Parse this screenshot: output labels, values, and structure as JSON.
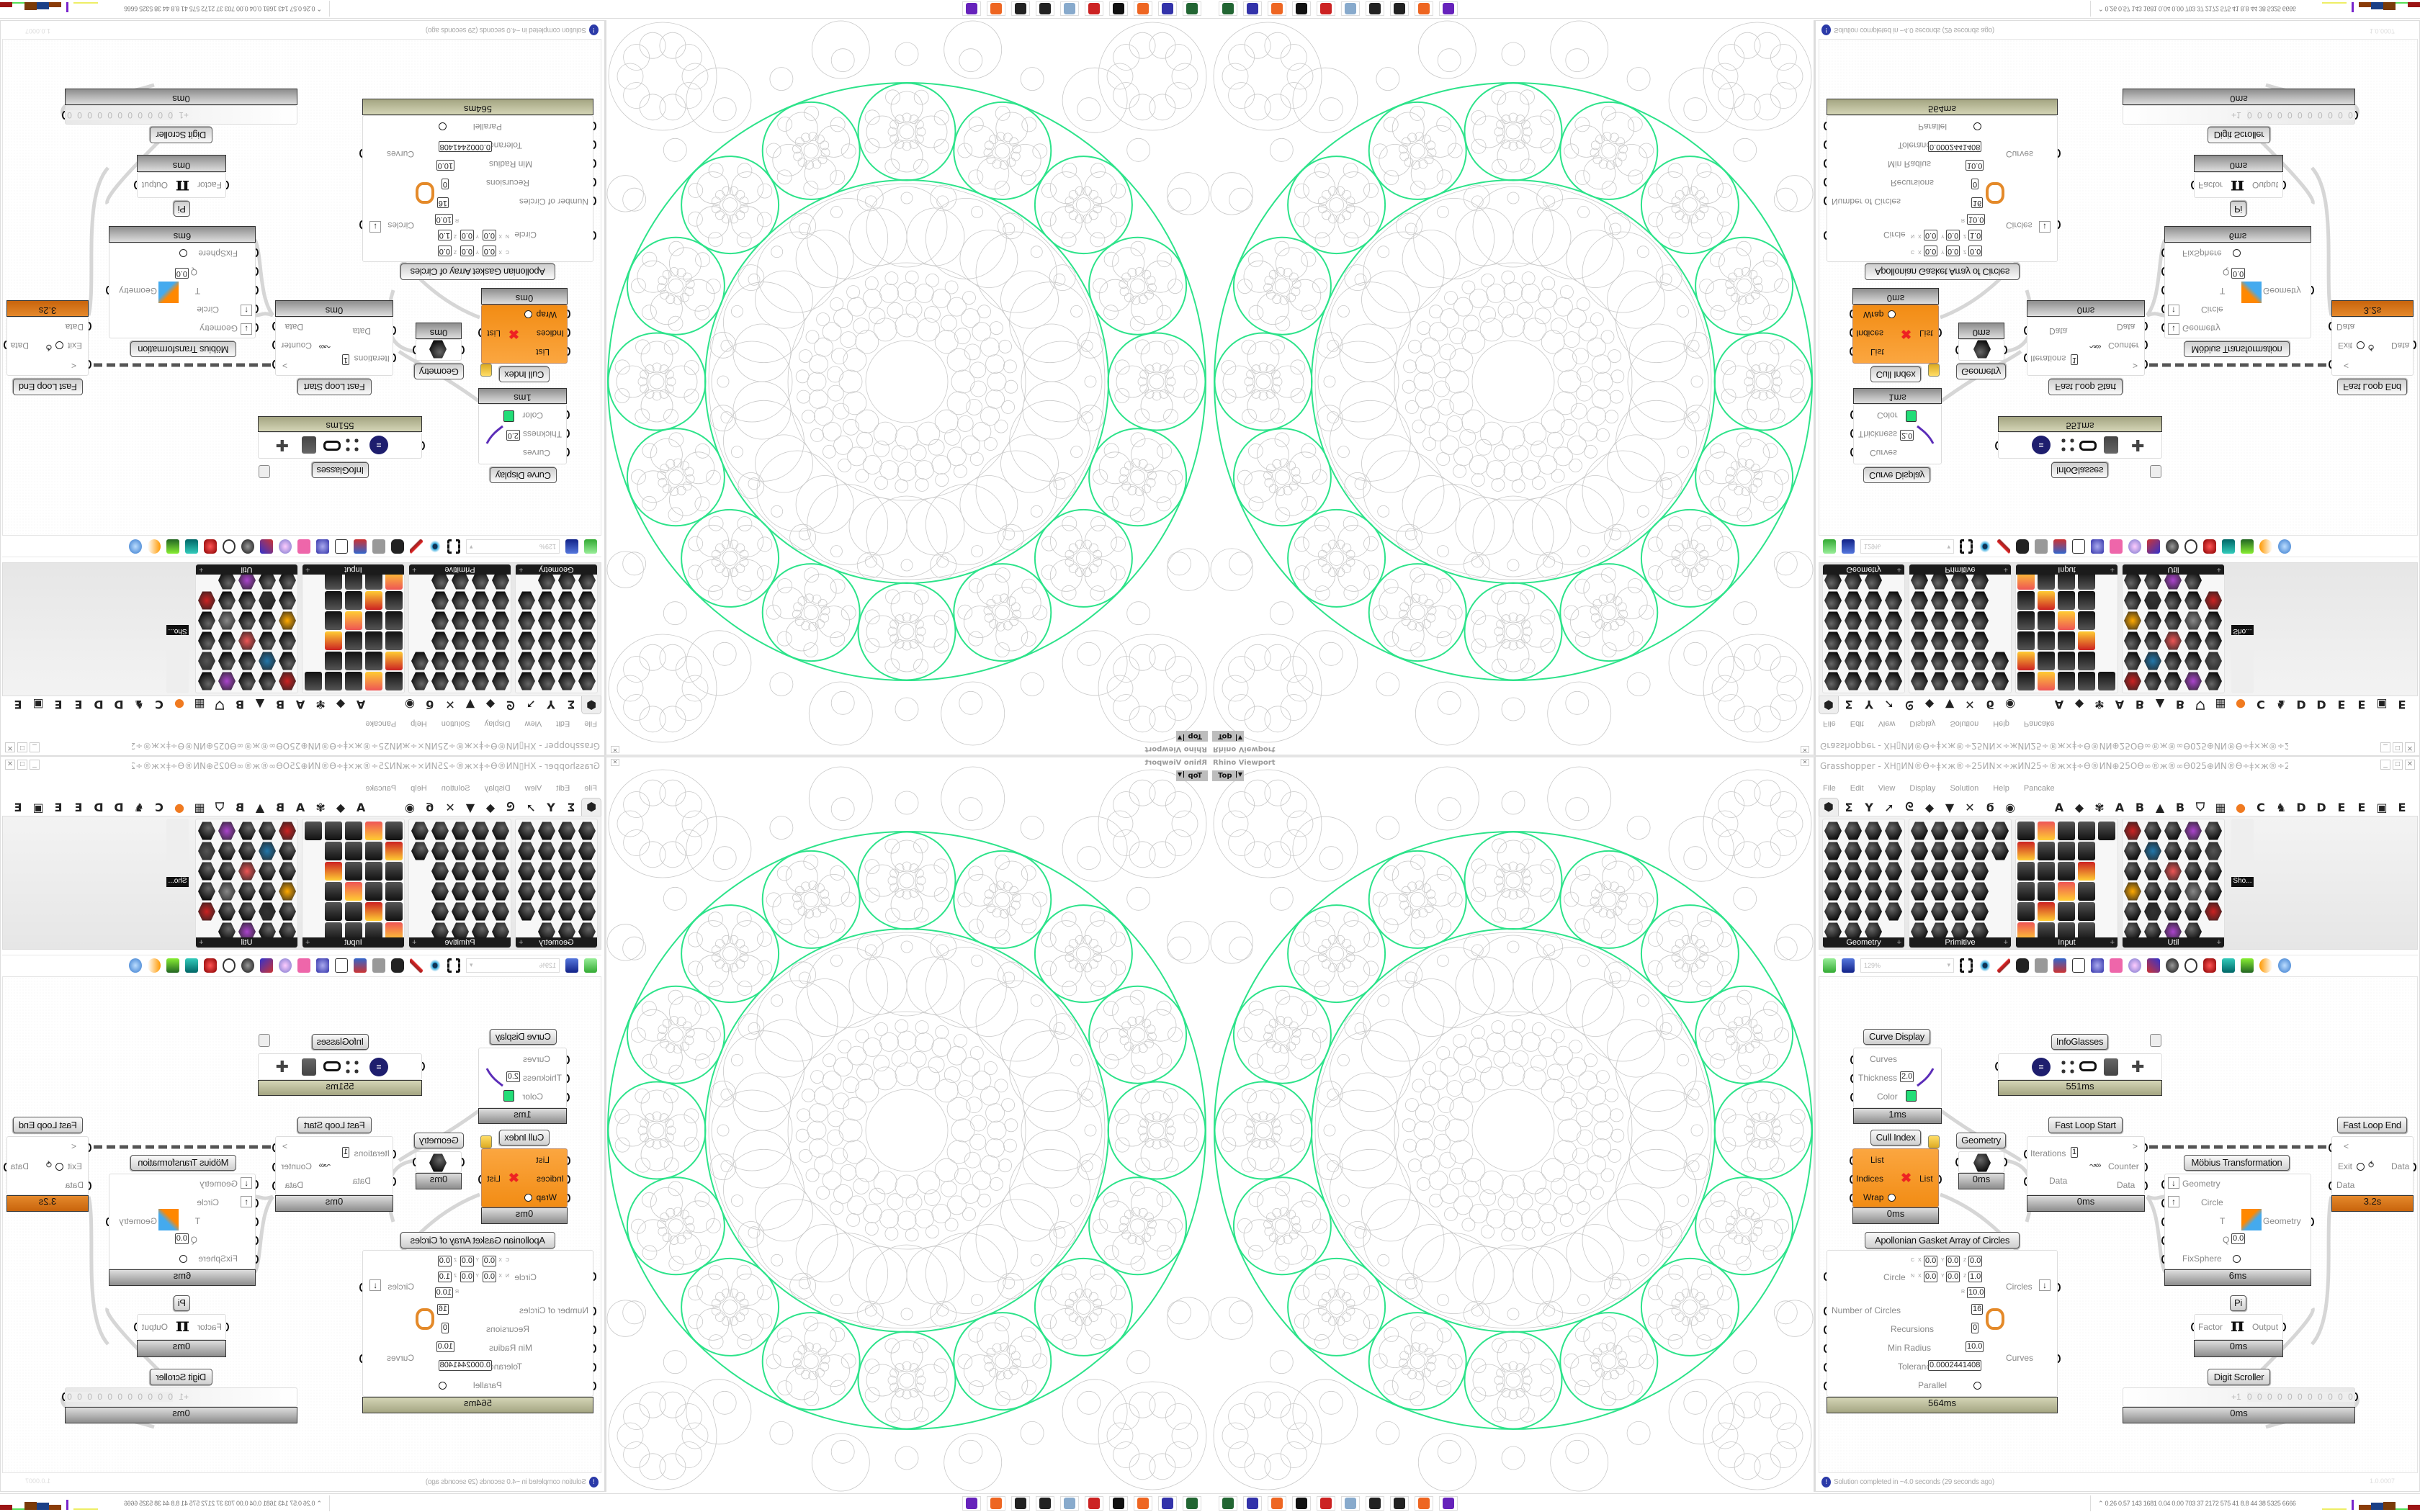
{
  "viewport": {
    "title": "Rhino Viewport",
    "view_name": "Top",
    "curve_color": "#2de38a",
    "gray_color": "#c9c9c9"
  },
  "gh": {
    "title": "Grasshopper - XH▯ИN®Ө÷ǂ×ж®÷25ИN×÷жИN25÷®ж×ǂ÷Ө®ИN⊕25ОӨ∞®ж®∞Ө025⊕ИN®Ө÷ǂ×ж®÷25ИN×÷жИN25÷®ж×ǂ÷Ө®ИN*",
    "menu": [
      "File",
      "Edit",
      "View",
      "Display",
      "Solution",
      "Help",
      "Pancake"
    ],
    "tab_icons": [
      "⬢",
      "Σ",
      "Y",
      "➚",
      "ᘓ",
      "◆",
      "▼",
      "✕",
      "ϭ",
      "◉"
    ],
    "tab_letters": [
      "A",
      "◆",
      "✾",
      "A",
      "B",
      "▲",
      "B",
      "⛉",
      "▦",
      "●",
      "C",
      "♞",
      "D",
      "D",
      "E",
      "E",
      "▣",
      "E"
    ],
    "panels": [
      "Geometry",
      "Primitive",
      "Input",
      "Util"
    ],
    "extra_panel_label": "Sho...",
    "zoom": "129%",
    "status": "Solution completed in ~4.0 seconds (29 seconds ago)",
    "version": "1.0.0007"
  },
  "nodes": {
    "curve_display": {
      "label": "Curve Display",
      "curves": "Curves",
      "thickness": "Thickness",
      "thickness_value": "2.0",
      "color": "Color",
      "color_value": "#22dd77",
      "time": "1ms"
    },
    "infoglasses": {
      "label": "InfoGlasses",
      "time": "551ms"
    },
    "cull_index": {
      "label": "Cull Index",
      "list": "List",
      "indices": "Indices",
      "wrap": "Wrap",
      "output": "List",
      "time": "0ms"
    },
    "geometry": {
      "label": "Geometry",
      "time": "0ms"
    },
    "fast_loop_start": {
      "label": "Fast Loop Start",
      "iterations": "Iterations",
      "iterations_value": "1",
      "data_in": "Data",
      "loop_out": ">",
      "counter": "Counter",
      "data_out": "Data",
      "time": "0ms"
    },
    "fast_loop_end": {
      "label": "Fast Loop End",
      "loop_in": "<",
      "exit": "Exit",
      "data_in": "Data",
      "data_out": "Data",
      "time": "3.2s"
    },
    "mobius": {
      "label": "Möbius Transformation",
      "geometry_in": "Geometry",
      "circle": "Circle",
      "t": "T",
      "q": "Q",
      "q_value": "0.0",
      "fixsphere": "FixSphere",
      "geometry_out": "Geometry",
      "time": "6ms"
    },
    "apollonian": {
      "label": "Apollonian Gasket Array of Circles",
      "circle": "Circle",
      "c_label": "C",
      "n_label": "N",
      "r_label": "R",
      "x_label": "X",
      "y_label": "Y",
      "z_label": "Z",
      "c": [
        "0.0",
        "0.0",
        "0.0"
      ],
      "n": [
        "0.0",
        "0.0",
        "1.0"
      ],
      "r": "10.0",
      "number_of_circles": "Number of Circles",
      "number_of_circles_value": "16",
      "recursions": "Recursions",
      "recursions_value": "0",
      "min_radius": "Min Radius",
      "min_radius_value": "10.0",
      "tolerance": "Tolerance",
      "tolerance_value": "0.0002441408",
      "parallel": "Parallel",
      "circles_out": "Circles",
      "curves_out": "Curves",
      "time": "564ms"
    },
    "pi": {
      "label": "Pi",
      "factor": "Factor",
      "output": "Output",
      "symbol": "π",
      "time": "0ms"
    },
    "digit_scroller": {
      "label": "Digit Scroller",
      "prefix": "+1",
      "digits": "0 0 0 0 0 0 0 0 0 0 0",
      "time": "0ms"
    }
  },
  "taskbar": {
    "icons": [
      "terminal-icon",
      "floppy-64-icon",
      "firefox-icon",
      "rhino-icon",
      "settings-gear-icon",
      "notepad-icon",
      "app-grid-icon",
      "app-grid-icon",
      "firefox-icon",
      "chat-app-icon"
    ],
    "stats": "0.26 0.57 143 1681 0.04 0.00 703 37 2172 575 41 8.8 44 38 5325 6666"
  }
}
